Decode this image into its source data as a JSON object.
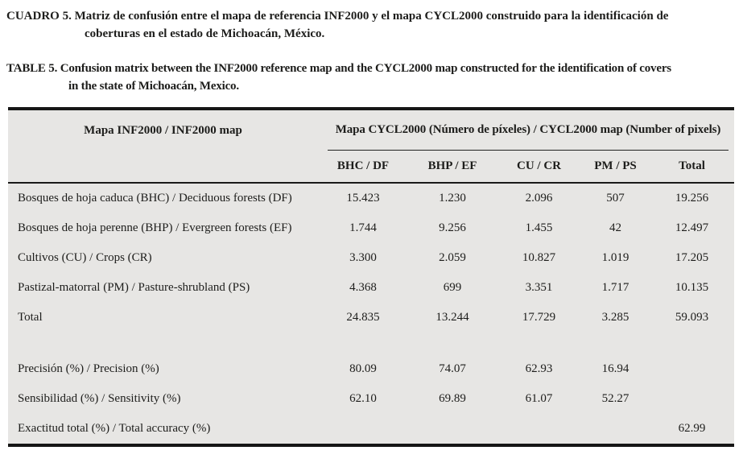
{
  "captions": {
    "spanish": {
      "label": "CUADRO 5.",
      "lines": [
        "Matriz de confusión entre el mapa de referencia INF2000 y el mapa CYCL2000 construido para la identificación de",
        "coberturas en el estado de Michoacán, México."
      ]
    },
    "english": {
      "label": "TABLE 5.",
      "lines": [
        "Confusion matrix between the INF2000 reference map and the CYCL2000 map constructed for the identification of covers",
        "in the state of Michoacán, Mexico."
      ]
    }
  },
  "table": {
    "row_header": "Mapa INF2000 / INF2000 map",
    "col_group_header": "Mapa CYCL2000 (Número de píxeles) / CYCL2000 map (Number of pixels)",
    "columns": [
      "BHC / DF",
      "BHP / EF",
      "CU / CR",
      "PM / PS",
      "Total"
    ],
    "rows": [
      {
        "label": "Bosques de hoja caduca (BHC) / Deciduous forests (DF)",
        "values": [
          "15.423",
          "1.230",
          "2.096",
          "507",
          "19.256"
        ]
      },
      {
        "label": "Bosques de hoja perenne (BHP) / Evergreen forests (EF)",
        "values": [
          "1.744",
          "9.256",
          "1.455",
          "42",
          "12.497"
        ]
      },
      {
        "label": "Cultivos (CU) / Crops (CR)",
        "values": [
          "3.300",
          "2.059",
          "10.827",
          "1.019",
          "17.205"
        ]
      },
      {
        "label": "Pastizal-matorral (PM) / Pasture-shrubland (PS)",
        "values": [
          "4.368",
          "699",
          "3.351",
          "1.717",
          "10.135"
        ]
      },
      {
        "label": "Total",
        "values": [
          "24.835",
          "13.244",
          "17.729",
          "3.285",
          "59.093"
        ]
      }
    ],
    "stat_rows": [
      {
        "label": "Precisión (%) / Precision (%)",
        "values": [
          "80.09",
          "74.07",
          "62.93",
          "16.94",
          ""
        ]
      },
      {
        "label": "Sensibilidad (%) / Sensitivity (%)",
        "values": [
          "62.10",
          "69.89",
          "61.07",
          "52.27",
          ""
        ]
      },
      {
        "label": "Exactitud total (%) / Total accuracy (%)",
        "values": [
          "",
          "",
          "",
          "",
          "62.99"
        ]
      }
    ]
  },
  "colors": {
    "table_background": "#e7e6e4",
    "border": "#161616",
    "text": "#1d1d1b"
  }
}
